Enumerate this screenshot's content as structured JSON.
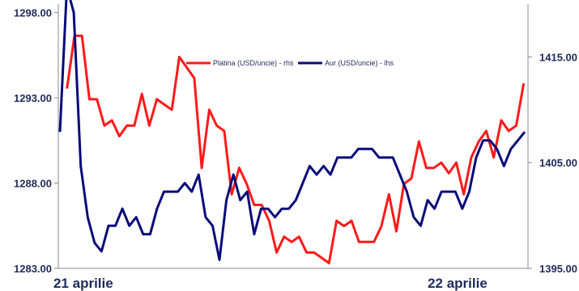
{
  "chart_data": {
    "type": "line",
    "x_labels": [
      "21 aprilie",
      "22 aprilie"
    ],
    "x_label_positions": [
      0,
      76
    ],
    "axes": {
      "left": {
        "min": 1283,
        "max": 1298,
        "ticks": [
          "1283.00",
          "1288.00",
          "1293.00",
          "1298.00"
        ]
      },
      "right": {
        "min": 1395,
        "max": 1420,
        "ticks": [
          "1395.00",
          "1405.00",
          "1415.00"
        ]
      }
    },
    "legend": {
      "placement": "top"
    },
    "series": [
      {
        "name": "Platina (USD/uncie) - rhs",
        "axis": "right",
        "color": "#ff1a1a",
        "values": [
          1412,
          1417,
          1417,
          1411,
          1411,
          1408.5,
          1409,
          1407.5,
          1408.5,
          1408.5,
          1411.5,
          1408.5,
          1411,
          1410.5,
          1410,
          1415,
          1414,
          1413,
          1404.5,
          1410,
          1408.5,
          1408,
          1402,
          1404.5,
          1403,
          1401,
          1401,
          1399.5,
          1396.5,
          1398,
          1397.5,
          1398,
          1396.5,
          1396.5,
          1396,
          1395.5,
          1399.5,
          1399,
          1399.5,
          1397.5,
          1397.5,
          1397.5,
          1399,
          1402,
          1398.5,
          1403,
          1403.5,
          1407,
          1404.5,
          1404.5,
          1405,
          1404,
          1405,
          1402,
          1405.5,
          1407,
          1408,
          1405.5,
          1409,
          1408,
          1408.5,
          1412.5
        ]
      },
      {
        "name": "Aur (USD/uncie) - lhs",
        "axis": "left",
        "color": "#0a0a7a",
        "values": [
          1291,
          1299.5,
          1298,
          1289,
          1286,
          1284.5,
          1284,
          1285.5,
          1285.5,
          1286.5,
          1285.5,
          1286,
          1285,
          1285,
          1286.5,
          1287.5,
          1287.5,
          1287.5,
          1288,
          1287.5,
          1288.5,
          1286,
          1285.5,
          1283.5,
          1287,
          1288.5,
          1287,
          1287.5,
          1285,
          1286.5,
          1286.5,
          1286,
          1286.5,
          1286.5,
          1287,
          1288,
          1289,
          1288.5,
          1289,
          1288.5,
          1289.5,
          1289.5,
          1289.5,
          1290,
          1290,
          1290,
          1289.5,
          1289.5,
          1289.5,
          1288.5,
          1287.5,
          1286,
          1285.5,
          1287,
          1286.5,
          1287.5,
          1287.5,
          1287.5,
          1286.5,
          1287.5,
          1289.5,
          1290.5,
          1290.5,
          1290,
          1289,
          1290,
          1290.5,
          1291
        ]
      }
    ]
  }
}
